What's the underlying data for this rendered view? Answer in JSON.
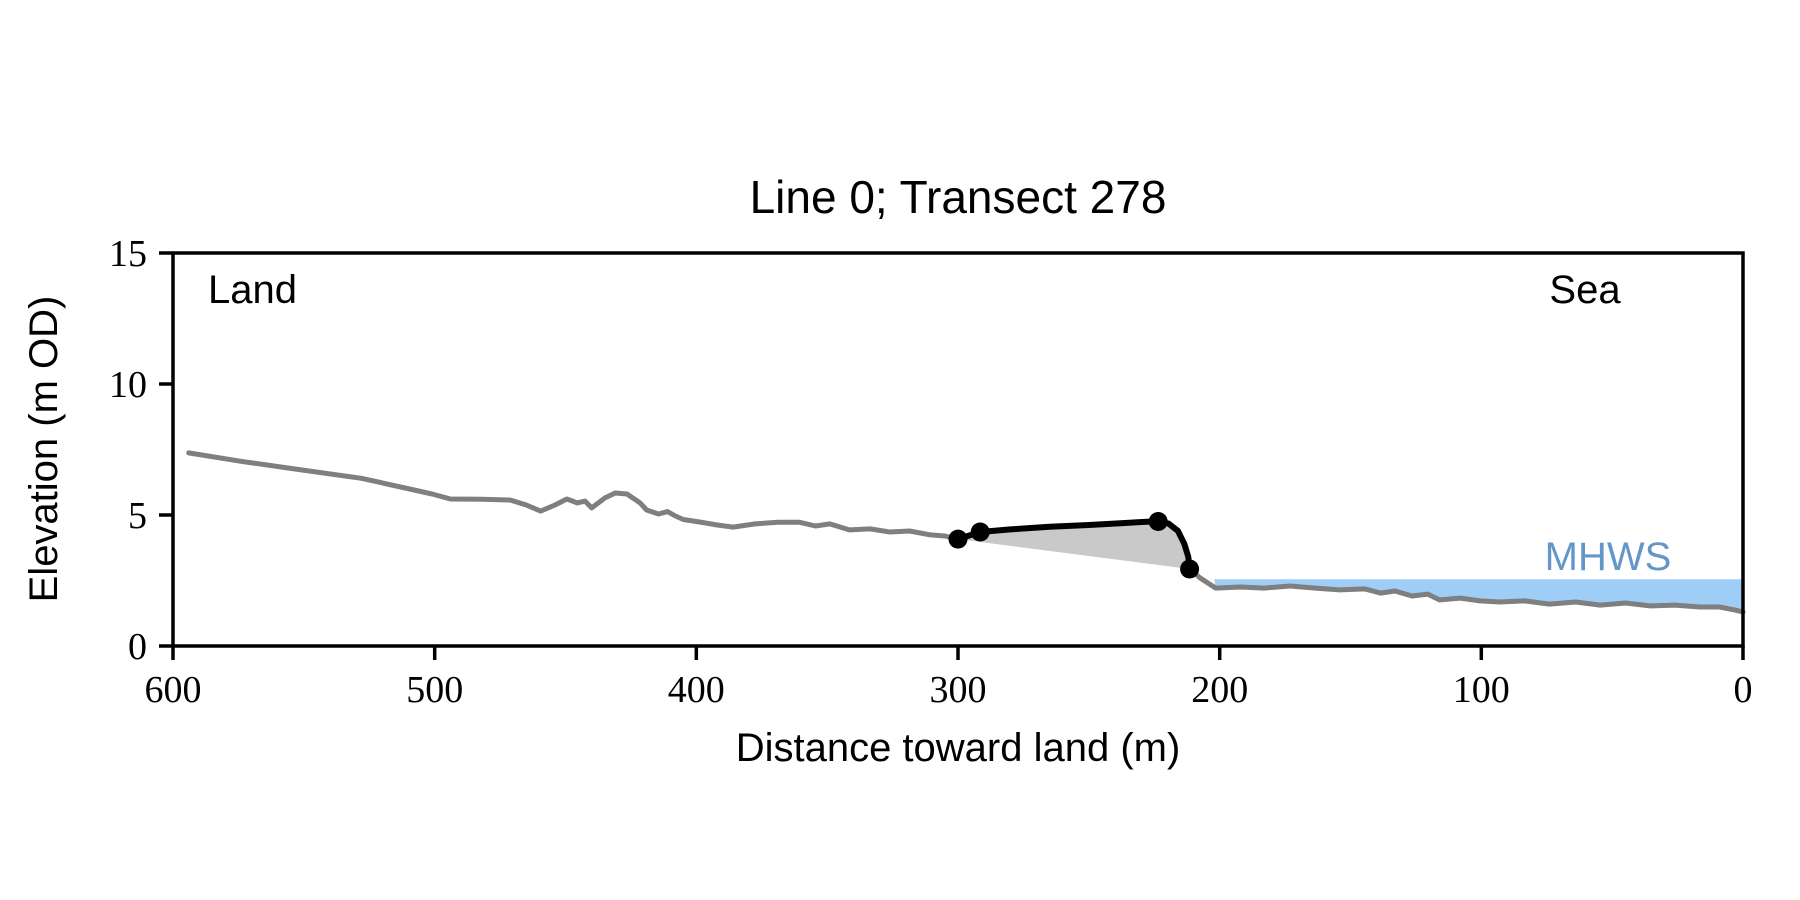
{
  "annotations": {
    "land": "Land",
    "sea": "Sea",
    "mhws": "MHWS"
  },
  "colors": {
    "terrain_line": "#7f7f7f",
    "dune_line": "#000000",
    "dune_fill": "#c9c9c9",
    "water_fill": "#9ecdf5",
    "mhws_text": "#6496c8",
    "axis": "#000000",
    "background": "#ffffff"
  },
  "chart_data": {
    "type": "line",
    "title": "Line 0; Transect 278",
    "xlabel": "Distance toward land (m)",
    "ylabel": "Elevation (m OD)",
    "xlim": [
      600,
      0
    ],
    "ylim": [
      0,
      15
    ],
    "x_axis_reversed": true,
    "grid": false,
    "x_ticks": [
      600,
      500,
      400,
      300,
      200,
      100,
      0
    ],
    "y_ticks": [
      0,
      5,
      10,
      15
    ],
    "water": {
      "label": "MHWS",
      "level": 2.55,
      "x_start": 202
    },
    "series": [
      {
        "name": "terrain-land",
        "color_key": "terrain_line",
        "width": 5,
        "points": [
          [
            594,
            7.37
          ],
          [
            574,
            7.05
          ],
          [
            551,
            6.72
          ],
          [
            528,
            6.4
          ],
          [
            513,
            6.07
          ],
          [
            501,
            5.8
          ],
          [
            494,
            5.61
          ],
          [
            482,
            5.6
          ],
          [
            471,
            5.57
          ],
          [
            465,
            5.38
          ],
          [
            459.5,
            5.15
          ],
          [
            454,
            5.38
          ],
          [
            449.5,
            5.61
          ],
          [
            445.5,
            5.46
          ],
          [
            442.5,
            5.53
          ],
          [
            440,
            5.27
          ],
          [
            435,
            5.65
          ],
          [
            431,
            5.84
          ],
          [
            426.5,
            5.8
          ],
          [
            421.5,
            5.46
          ],
          [
            419,
            5.19
          ],
          [
            414.5,
            5.04
          ],
          [
            411,
            5.13
          ],
          [
            408,
            4.96
          ],
          [
            405,
            4.83
          ],
          [
            398.5,
            4.73
          ],
          [
            392,
            4.62
          ],
          [
            386,
            4.54
          ],
          [
            377.5,
            4.66
          ],
          [
            369,
            4.72
          ],
          [
            360.5,
            4.72
          ],
          [
            354.5,
            4.58
          ],
          [
            349,
            4.66
          ],
          [
            341.5,
            4.43
          ],
          [
            333.5,
            4.47
          ],
          [
            326,
            4.35
          ],
          [
            318.5,
            4.39
          ],
          [
            310.5,
            4.24
          ],
          [
            305,
            4.2
          ],
          [
            300,
            4.08
          ]
        ]
      },
      {
        "name": "terrain-sea",
        "color_key": "terrain_line",
        "width": 5,
        "points": [
          [
            211.5,
            2.94
          ],
          [
            207.5,
            2.6
          ],
          [
            201.5,
            2.21
          ],
          [
            192,
            2.25
          ],
          [
            183,
            2.21
          ],
          [
            173,
            2.29
          ],
          [
            163.5,
            2.21
          ],
          [
            154,
            2.14
          ],
          [
            144.5,
            2.18
          ],
          [
            138.5,
            2.02
          ],
          [
            133,
            2.1
          ],
          [
            126.5,
            1.91
          ],
          [
            120.5,
            1.98
          ],
          [
            116,
            1.76
          ],
          [
            108,
            1.83
          ],
          [
            100.5,
            1.72
          ],
          [
            93,
            1.68
          ],
          [
            83.5,
            1.72
          ],
          [
            74,
            1.6
          ],
          [
            64,
            1.68
          ],
          [
            54.5,
            1.56
          ],
          [
            45,
            1.64
          ],
          [
            35.5,
            1.53
          ],
          [
            26,
            1.56
          ],
          [
            16.5,
            1.49
          ],
          [
            9,
            1.49
          ],
          [
            3,
            1.37
          ],
          [
            0,
            1.3
          ]
        ]
      },
      {
        "name": "dune-crest",
        "color_key": "dune_line",
        "width": 6,
        "fill_key": "dune_fill",
        "points": [
          [
            300,
            4.08
          ],
          [
            291.5,
            4.35
          ],
          [
            280,
            4.45
          ],
          [
            265,
            4.55
          ],
          [
            250,
            4.62
          ],
          [
            237,
            4.69
          ],
          [
            228,
            4.74
          ],
          [
            223.5,
            4.75
          ],
          [
            219.5,
            4.67
          ],
          [
            216,
            4.4
          ],
          [
            213.5,
            3.9
          ],
          [
            212,
            3.4
          ],
          [
            211.5,
            2.94
          ]
        ],
        "markers": [
          [
            300,
            4.08
          ],
          [
            291.5,
            4.35
          ],
          [
            223.5,
            4.75
          ],
          [
            211.5,
            2.94
          ]
        ],
        "marker_radius": 9.5
      }
    ]
  }
}
